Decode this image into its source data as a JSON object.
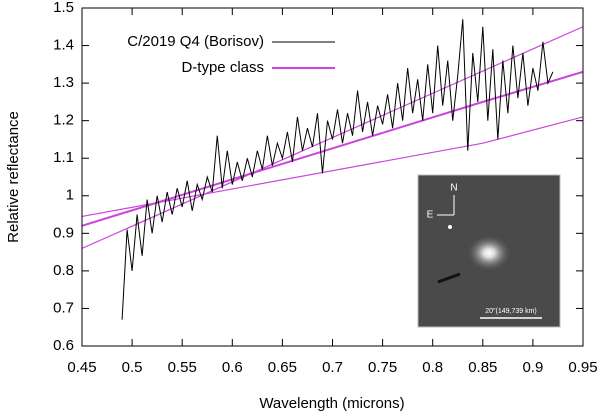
{
  "chart_data": {
    "type": "line",
    "xlabel": "Wavelength (microns)",
    "ylabel": "Relative reflectance",
    "xlim": [
      0.45,
      0.95
    ],
    "xticks": [
      0.45,
      0.5,
      0.55,
      0.6,
      0.65,
      0.7,
      0.75,
      0.8,
      0.85,
      0.9,
      0.95
    ],
    "ylim": [
      0.6,
      1.5
    ],
    "yticks": [
      0.6,
      0.7,
      0.8,
      0.9,
      1,
      1.1,
      1.2,
      1.3,
      1.4,
      1.5
    ],
    "legend": "upper left",
    "series": [
      {
        "name": "C/2019 Q4 (Borisov)",
        "color": "#000000",
        "x": [
          0.49,
          0.495,
          0.5,
          0.505,
          0.51,
          0.515,
          0.52,
          0.525,
          0.53,
          0.535,
          0.54,
          0.545,
          0.55,
          0.555,
          0.56,
          0.565,
          0.57,
          0.575,
          0.58,
          0.585,
          0.59,
          0.595,
          0.6,
          0.605,
          0.61,
          0.615,
          0.62,
          0.625,
          0.63,
          0.635,
          0.64,
          0.645,
          0.65,
          0.655,
          0.66,
          0.665,
          0.67,
          0.675,
          0.68,
          0.685,
          0.69,
          0.695,
          0.7,
          0.705,
          0.71,
          0.715,
          0.72,
          0.725,
          0.73,
          0.735,
          0.74,
          0.745,
          0.75,
          0.755,
          0.76,
          0.765,
          0.77,
          0.775,
          0.78,
          0.785,
          0.79,
          0.795,
          0.8,
          0.805,
          0.81,
          0.815,
          0.82,
          0.825,
          0.83,
          0.835,
          0.84,
          0.845,
          0.85,
          0.855,
          0.86,
          0.865,
          0.87,
          0.875,
          0.88,
          0.885,
          0.89,
          0.895,
          0.9,
          0.905,
          0.91,
          0.915,
          0.92
        ],
        "values": [
          0.67,
          0.91,
          0.8,
          0.95,
          0.84,
          0.99,
          0.9,
          1.0,
          0.93,
          1.01,
          0.95,
          1.02,
          0.97,
          1.04,
          0.96,
          1.03,
          0.99,
          1.05,
          1.01,
          1.16,
          1.02,
          1.12,
          1.03,
          1.09,
          1.04,
          1.1,
          1.05,
          1.12,
          1.07,
          1.16,
          1.08,
          1.14,
          1.1,
          1.17,
          1.09,
          1.21,
          1.12,
          1.18,
          1.13,
          1.22,
          1.06,
          1.2,
          1.15,
          1.23,
          1.14,
          1.22,
          1.16,
          1.28,
          1.17,
          1.25,
          1.16,
          1.24,
          1.19,
          1.27,
          1.18,
          1.3,
          1.2,
          1.34,
          1.22,
          1.31,
          1.2,
          1.35,
          1.22,
          1.4,
          1.24,
          1.36,
          1.2,
          1.32,
          1.47,
          1.12,
          1.38,
          1.25,
          1.45,
          1.2,
          1.39,
          1.15,
          1.36,
          1.22,
          1.4,
          1.26,
          1.38,
          1.24,
          1.34,
          1.28,
          1.41,
          1.3,
          1.33
        ]
      },
      {
        "name": "D-type class",
        "color": "#cc44dd",
        "x": [
          0.45,
          0.85,
          0.95
        ],
        "values": [
          0.92,
          1.25,
          1.33
        ]
      },
      {
        "color": "#cc44dd",
        "x": [
          0.45,
          0.95
        ],
        "values": [
          0.86,
          1.45
        ]
      },
      {
        "color": "#cc44dd",
        "x": [
          0.45,
          0.85,
          0.95
        ],
        "values": [
          0.945,
          1.14,
          1.21
        ]
      }
    ],
    "inset_labels": [
      "N",
      "E",
      "20\"(149,739 km)"
    ]
  }
}
